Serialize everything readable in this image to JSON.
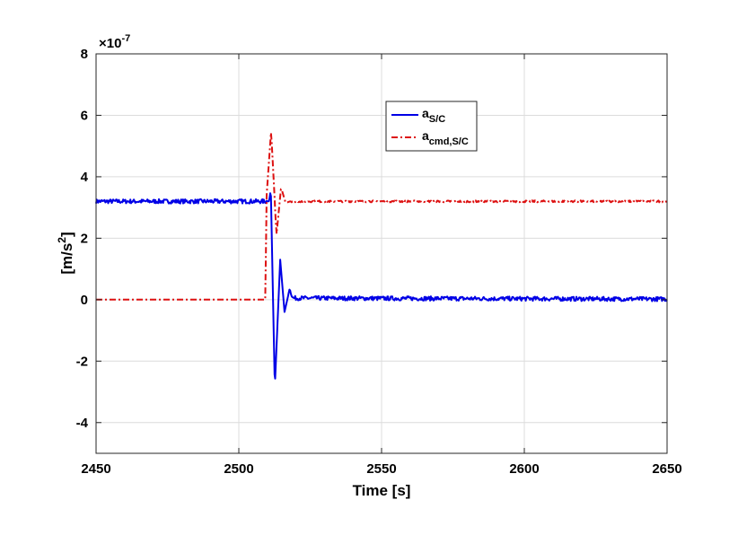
{
  "chart_data": {
    "type": "line",
    "title": "",
    "xlabel": "Time [s]",
    "ylabel": "[m/s2]",
    "ylabel_base": "[m/s",
    "ylabel_sup": "2",
    "ylabel_end": "]",
    "y_exponent_prefix": "×10",
    "y_exponent": "-7",
    "xlim": [
      2450,
      2650
    ],
    "ylim": [
      -5,
      8
    ],
    "xticks": [
      2450,
      2500,
      2550,
      2600,
      2650
    ],
    "xtick_labels": [
      "2450",
      "2500",
      "2550",
      "2600",
      "2650"
    ],
    "yticks": [
      -4,
      -2,
      0,
      2,
      4,
      6,
      8
    ],
    "ytick_labels": [
      "-4",
      "-2",
      "0",
      "2",
      "4",
      "6",
      "8"
    ],
    "grid": true,
    "legend_position": "top-center",
    "series": [
      {
        "name": "a_S/C",
        "legend_base": "a",
        "legend_sub": "S/C",
        "color": "#0000e6",
        "style": "solid",
        "noise_amplitude": 0.07,
        "points": [
          [
            2450,
            3.2
          ],
          [
            2510.6,
            3.2
          ],
          [
            2511.2,
            3.6
          ],
          [
            2512.6,
            -2.9
          ],
          [
            2514.5,
            1.3
          ],
          [
            2516.0,
            -0.4
          ],
          [
            2517.8,
            0.35
          ],
          [
            2519,
            0.05
          ],
          [
            2650,
            0.02
          ]
        ]
      },
      {
        "name": "a_cmd,S/C",
        "legend_base": "a",
        "legend_sub": "cmd,S/C",
        "color": "#dd1111",
        "style": "dashdot",
        "noise_amplitude": 0.03,
        "points": [
          [
            2450,
            0
          ],
          [
            2509.4,
            0
          ],
          [
            2509.6,
            3.2
          ],
          [
            2511.3,
            5.5
          ],
          [
            2513.2,
            2.1
          ],
          [
            2514.8,
            3.65
          ],
          [
            2516.4,
            3.15
          ],
          [
            2518,
            3.2
          ],
          [
            2650,
            3.2
          ]
        ]
      }
    ]
  }
}
